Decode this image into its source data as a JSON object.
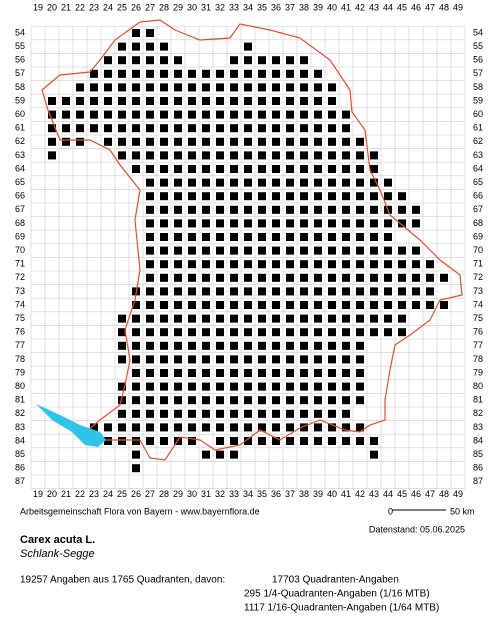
{
  "map": {
    "columns": [
      19,
      20,
      21,
      22,
      23,
      24,
      25,
      26,
      27,
      28,
      29,
      30,
      31,
      32,
      33,
      34,
      35,
      36,
      37,
      38,
      39,
      40,
      41,
      42,
      43,
      44,
      45,
      46,
      47,
      48,
      49
    ],
    "rows": [
      54,
      55,
      56,
      57,
      58,
      59,
      60,
      61,
      62,
      63,
      64,
      65,
      66,
      67,
      68,
      69,
      70,
      71,
      72,
      73,
      74,
      75,
      76,
      77,
      78,
      79,
      80,
      81,
      82,
      83,
      84,
      85,
      86,
      87
    ],
    "spans": [
      [
        54,
        26,
        27
      ],
      [
        55,
        25,
        28
      ],
      [
        55,
        34,
        34
      ],
      [
        56,
        24,
        29
      ],
      [
        56,
        33,
        38
      ],
      [
        57,
        23,
        39
      ],
      [
        58,
        22,
        40
      ],
      [
        59,
        20,
        40
      ],
      [
        60,
        20,
        41
      ],
      [
        61,
        20,
        41
      ],
      [
        62,
        20,
        22
      ],
      [
        62,
        24,
        42
      ],
      [
        63,
        20,
        20
      ],
      [
        63,
        25,
        43
      ],
      [
        64,
        26,
        43
      ],
      [
        65,
        27,
        44
      ],
      [
        66,
        27,
        45
      ],
      [
        67,
        27,
        46
      ],
      [
        68,
        27,
        46
      ],
      [
        69,
        27,
        44
      ],
      [
        70,
        27,
        46
      ],
      [
        71,
        27,
        47
      ],
      [
        72,
        27,
        48
      ],
      [
        73,
        26,
        47
      ],
      [
        74,
        26,
        48
      ],
      [
        75,
        25,
        45
      ],
      [
        76,
        25,
        45
      ],
      [
        77,
        25,
        42
      ],
      [
        78,
        25,
        42
      ],
      [
        79,
        26,
        42
      ],
      [
        80,
        25,
        42
      ],
      [
        81,
        25,
        42
      ],
      [
        82,
        25,
        41
      ],
      [
        83,
        23,
        42
      ],
      [
        84,
        23,
        30
      ],
      [
        84,
        32,
        43
      ],
      [
        85,
        26,
        26
      ],
      [
        85,
        31,
        33
      ],
      [
        85,
        43,
        43
      ],
      [
        86,
        26,
        26
      ]
    ],
    "scale_start": "0",
    "scale_end": "50 km"
  },
  "footer": {
    "credit": "Arbeitsgemeinschaft Flora von Bayern - www.bayernflora.de",
    "date": "Datenstand: 05.06.2025",
    "species": "Carex acuta L.",
    "common_name": "Schlank-Segge",
    "summary": "19257 Angaben aus 1765 Quadranten, davon:",
    "counts": [
      "17703 Quadranten-Angaben",
      "295 1/4-Quadranten-Angaben (1/16 MTB)",
      "1117 1/16-Quadranten-Angaben (1/64 MTB)"
    ]
  }
}
